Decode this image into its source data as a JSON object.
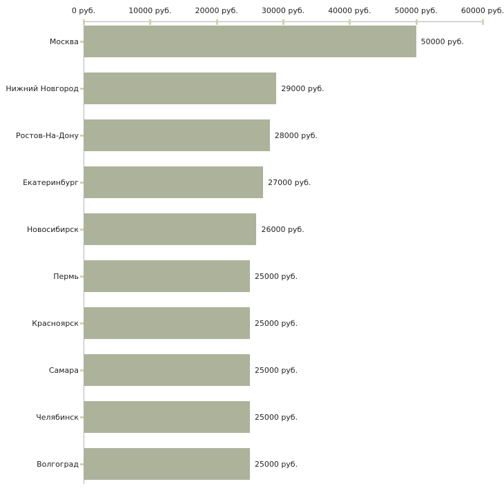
{
  "chart_data": {
    "type": "bar",
    "orientation": "horizontal",
    "unit": "руб.",
    "categories": [
      "Москва",
      "Нижний Новгород",
      "Ростов-На-Дону",
      "Екатеринбург",
      "Новосибирск",
      "Пермь",
      "Красноярск",
      "Самара",
      "Челябинск",
      "Волгоград"
    ],
    "values": [
      50000,
      29000,
      28000,
      27000,
      26000,
      25000,
      25000,
      25000,
      25000,
      25000
    ],
    "value_labels": [
      "50000 руб.",
      "29000 руб.",
      "28000 руб.",
      "27000 руб.",
      "26000 руб.",
      "25000 руб.",
      "25000 руб.",
      "25000 руб.",
      "25000 руб.",
      "25000 руб."
    ],
    "x_ticks": [
      0,
      10000,
      20000,
      30000,
      40000,
      50000,
      60000
    ],
    "x_tick_labels": [
      "0 руб.",
      "10000 руб.",
      "20000 руб.",
      "30000 руб.",
      "40000 руб.",
      "50000 руб.",
      "60000 руб."
    ],
    "xlim": [
      0,
      60000
    ],
    "grid": false,
    "legend_position": "none",
    "colors": {
      "bar": "#acb39a",
      "axis_line": "#b3b3b3",
      "tick_mark": "#d6d2a6",
      "text": "#222222",
      "background": "#ffffff"
    }
  }
}
